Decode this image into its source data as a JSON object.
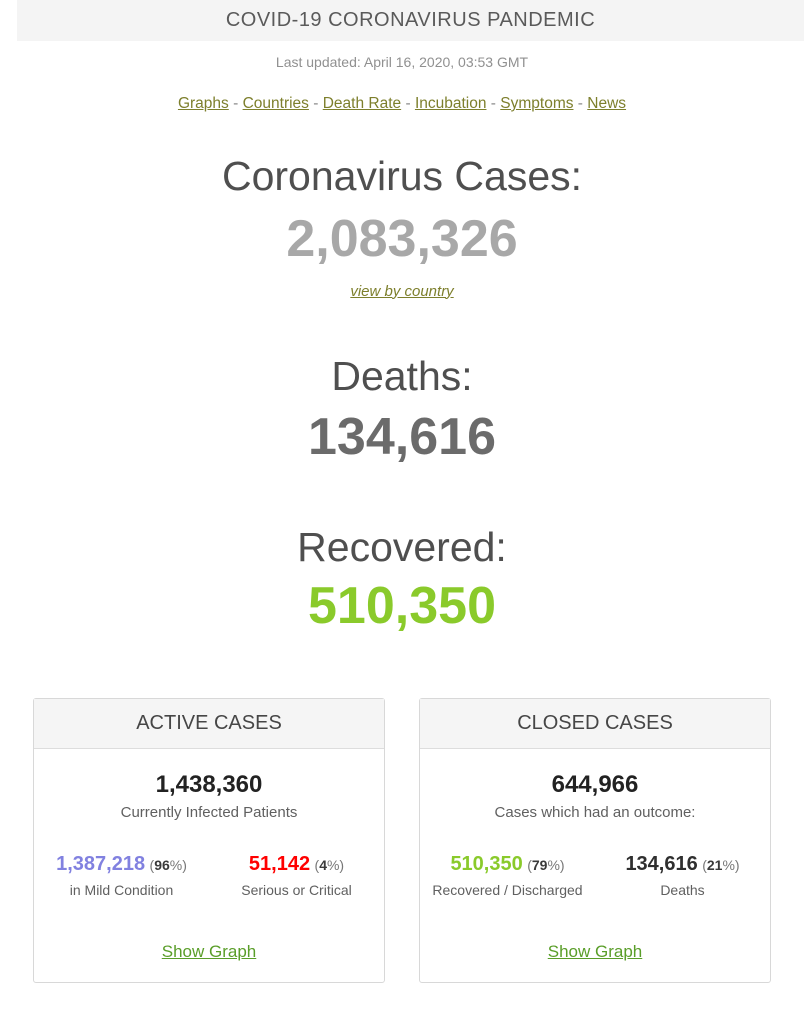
{
  "header": {
    "title": "COVID-19 CORONAVIRUS PANDEMIC",
    "last_updated": "Last updated: April 16, 2020, 03:53 GMT"
  },
  "nav": {
    "separator": "-",
    "links": [
      "Graphs",
      "Countries",
      "Death Rate",
      "Incubation",
      "Symptoms",
      "News"
    ]
  },
  "counters": {
    "cases": {
      "heading": "Coronavirus Cases:",
      "value": "2,083,326",
      "link": "view by country"
    },
    "deaths": {
      "heading": "Deaths:",
      "value": "134,616"
    },
    "recovered": {
      "heading": "Recovered:",
      "value": "510,350"
    }
  },
  "punctuation": {
    "open_paren": "(",
    "percent_close": "%)"
  },
  "panels": {
    "active": {
      "title": "ACTIVE CASES",
      "total": "1,438,360",
      "total_caption": "Currently Infected Patients",
      "breakdown": [
        {
          "value": "1,387,218",
          "pct": "96",
          "label": "in Mild Condition",
          "color": "#8181e0"
        },
        {
          "value": "51,142",
          "pct": "4",
          "label": "Serious or Critical",
          "color": "#ff0000"
        }
      ],
      "link": "Show Graph"
    },
    "closed": {
      "title": "CLOSED CASES",
      "total": "644,966",
      "total_caption": "Cases which had an outcome:",
      "breakdown": [
        {
          "value": "510,350",
          "pct": "79",
          "label": "Recovered / Discharged",
          "color": "#8aca2b"
        },
        {
          "value": "134,616",
          "pct": "21",
          "label": "Deaths",
          "color": "#2f2f2f"
        }
      ],
      "link": "Show Graph"
    }
  },
  "colors": {
    "accent_green": "#8aca2b",
    "nav_link_olive": "#7d7f2c",
    "show_graph_green": "#5a9e29",
    "mild_blue": "#8181e0",
    "critical_red": "#ff0000",
    "cases_number_gray": "#a8a8a8",
    "deaths_number_gray": "#6b6b6b",
    "top_bar_bg": "#f4f4f4"
  }
}
